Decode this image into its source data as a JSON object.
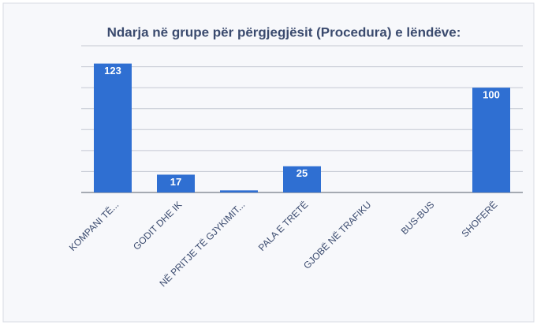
{
  "chart_data": {
    "type": "bar",
    "title": "Ndarja në grupe për përgjegjësit (Procedura) e lëndëve:",
    "categories": [
      "KOMPANI TË...",
      "GODIT DHE IK",
      "NË PRITJE TË GJYKIMIT...",
      "PALA E TRETË",
      "GJOBË NË TRAFIKU",
      "BUS-BUS",
      "SHOFERË"
    ],
    "values": [
      123,
      17,
      2,
      25,
      0,
      0,
      100
    ],
    "value_labels": [
      "123",
      "17",
      null,
      "25",
      null,
      null,
      "100"
    ],
    "color": "#2f6fd2",
    "ylim": [
      0,
      140
    ],
    "yticks": [
      0,
      20,
      40,
      60,
      80,
      100,
      120,
      140
    ],
    "grid": true
  }
}
